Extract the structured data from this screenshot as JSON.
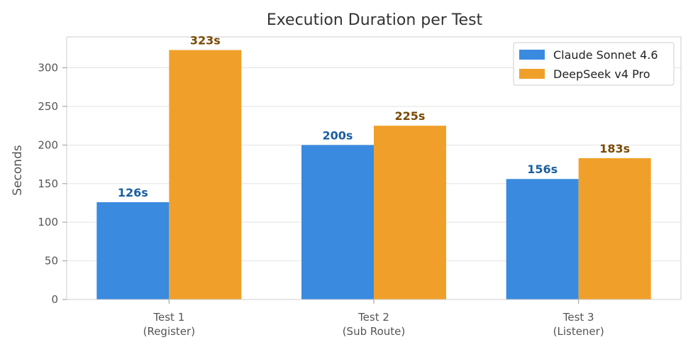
{
  "chart_data": {
    "type": "bar",
    "title": "Execution Duration per Test",
    "xlabel": "",
    "ylabel": "Seconds",
    "categories": [
      [
        "Test 1",
        "(Register)"
      ],
      [
        "Test 2",
        "(Sub Route)"
      ],
      [
        "Test 3",
        "(Listener)"
      ]
    ],
    "series": [
      {
        "name": "Claude Sonnet 4.6",
        "values": [
          126,
          200,
          156
        ],
        "labels": [
          "126s",
          "200s",
          "156s"
        ],
        "color": "#3a8ae0",
        "label_color": "#1a5fa0"
      },
      {
        "name": "DeepSeek v4 Pro",
        "values": [
          323,
          225,
          183
        ],
        "labels": [
          "323s",
          "225s",
          "183s"
        ],
        "color": "#f0a02a",
        "label_color": "#7a4a05"
      }
    ],
    "ylim": [
      0,
      340
    ],
    "yticks": [
      0,
      50,
      100,
      150,
      200,
      250,
      300
    ],
    "grid": true,
    "legend_position": "top-right"
  }
}
